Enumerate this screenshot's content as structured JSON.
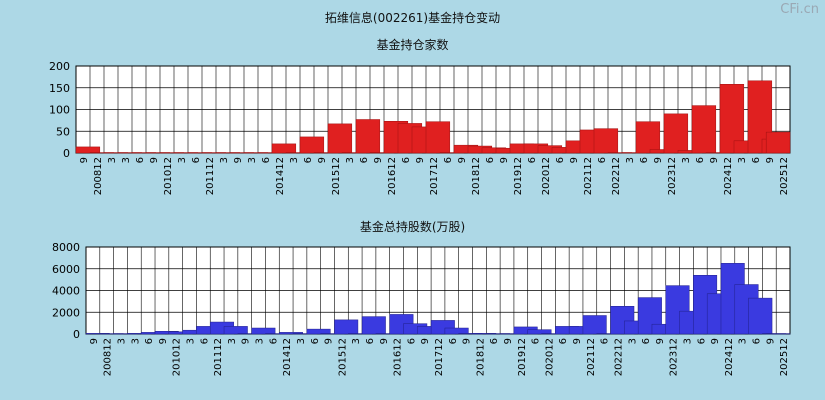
{
  "page_title": "拓维信息(002261)基金持仓变动",
  "watermark": "CFi.cn",
  "colors": {
    "background": "#add8e6",
    "plot_bg": "#ffffff",
    "grid": "#000000",
    "red_bar": "#e02020",
    "blue_bar": "#3a3ae0"
  },
  "chart_data": [
    {
      "type": "bar",
      "title": "基金持仓家数",
      "ylim": [
        0,
        200
      ],
      "yticks": [
        0,
        50,
        100,
        150,
        200
      ],
      "categories": [
        "9",
        "200812",
        "3",
        "3",
        "6",
        "9",
        "201012",
        "3",
        "6",
        "201112",
        "3",
        "9",
        "3",
        "6",
        "201412",
        "3",
        "6",
        "9",
        "201512",
        "3",
        "6",
        "9",
        "201612",
        "6",
        "9",
        "201712",
        "6",
        "9",
        "201812",
        "6",
        "9",
        "201912",
        "6",
        "202012",
        "6",
        "9",
        "202112",
        "6",
        "202212",
        "3",
        "6",
        "9",
        "202312",
        "3",
        "6",
        "9",
        "202412",
        "3",
        "6",
        "9",
        "202512"
      ],
      "values": [
        14,
        1,
        1,
        1,
        1,
        1,
        1,
        1,
        1,
        1,
        1,
        1,
        1,
        1,
        21,
        1,
        37,
        1,
        67,
        1,
        77,
        1,
        73,
        68,
        60,
        72,
        1,
        18,
        16,
        12,
        11,
        21,
        21,
        17,
        13,
        28,
        53,
        56,
        1,
        1,
        72,
        8,
        90,
        6,
        109,
        1,
        158,
        28,
        166,
        32,
        48
      ],
      "grid": true
    },
    {
      "type": "bar",
      "title": "基金总持股数(万股)",
      "ylim": [
        0,
        8000
      ],
      "yticks": [
        0,
        2000,
        4000,
        6000,
        8000
      ],
      "categories": [
        "9",
        "200812",
        "3",
        "3",
        "6",
        "9",
        "201012",
        "3",
        "6",
        "201112",
        "3",
        "9",
        "3",
        "6",
        "201412",
        "3",
        "6",
        "9",
        "201512",
        "3",
        "6",
        "9",
        "201612",
        "6",
        "9",
        "201712",
        "6",
        "9",
        "201812",
        "6",
        "9",
        "201912",
        "6",
        "202012",
        "6",
        "9",
        "202112",
        "6",
        "202212",
        "3",
        "6",
        "9",
        "202312",
        "3",
        "6",
        "9",
        "202412",
        "3",
        "6",
        "9",
        "202512"
      ],
      "values": [
        60,
        40,
        40,
        60,
        150,
        250,
        200,
        350,
        700,
        1100,
        700,
        40,
        550,
        40,
        150,
        40,
        450,
        40,
        1300,
        40,
        1600,
        40,
        1800,
        950,
        700,
        1250,
        550,
        60,
        60,
        40,
        40,
        650,
        400,
        40,
        700,
        700,
        1700,
        40,
        2550,
        1200,
        3350,
        900,
        4450,
        2100,
        5400,
        3700,
        6500,
        4550,
        3300,
        40,
        40
      ],
      "grid": true
    }
  ]
}
